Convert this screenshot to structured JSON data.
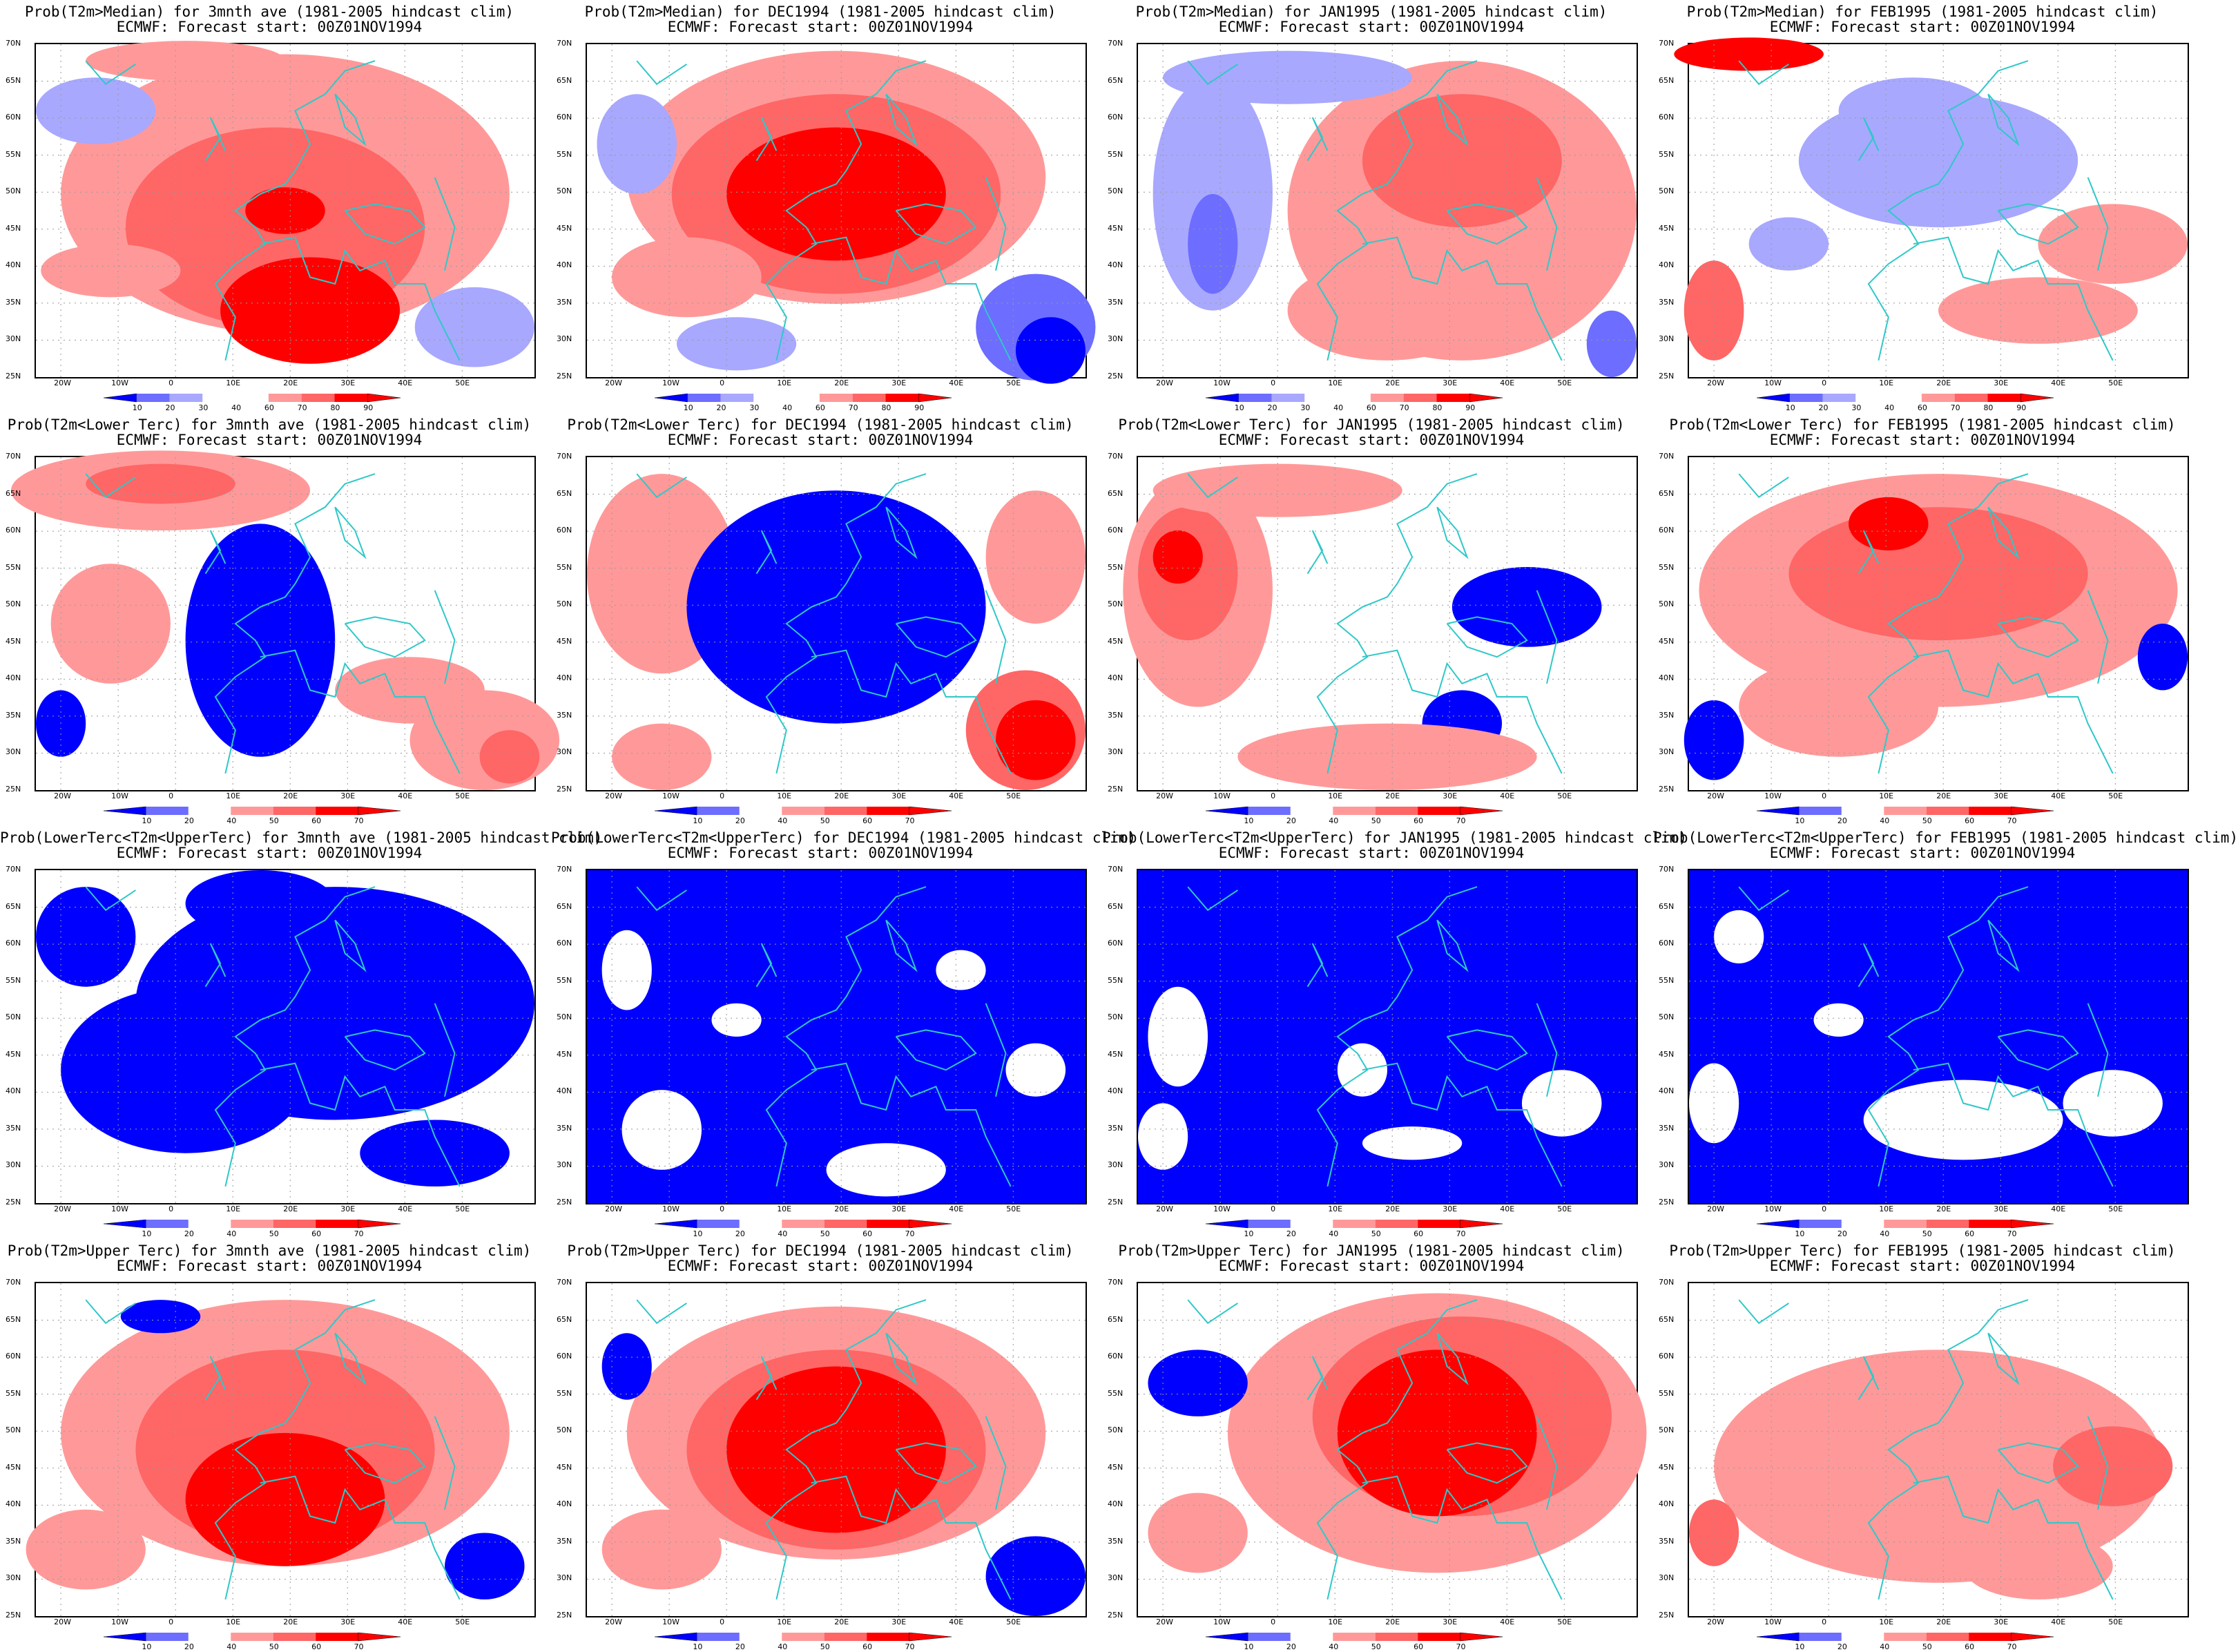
{
  "colors": {
    "blue_dark": "#0000ff",
    "blue_mid": "#6d6dff",
    "blue_light": "#a8a8ff",
    "white": "#ffffff",
    "red_light": "#ff9999",
    "red_mid": "#ff6666",
    "red_dark": "#ff0000",
    "coast": "#2fc8c8"
  },
  "axes": {
    "lat_ticks": [
      "70N",
      "65N",
      "60N",
      "55N",
      "50N",
      "45N",
      "40N",
      "35N",
      "30N",
      "25N"
    ],
    "lon_ticks": [
      "20W",
      "10W",
      "0",
      "10E",
      "20E",
      "30E",
      "40E",
      "50E"
    ]
  },
  "colorbars": {
    "median": [
      "10",
      "20",
      "30",
      "40",
      "60",
      "70",
      "80",
      "90"
    ],
    "tercile": [
      "10",
      "20",
      "40",
      "50",
      "60",
      "70"
    ]
  },
  "panels": [
    {
      "line1": "Prob(T2m>Median) for 3mnth ave (1981-2005 hindcast clim)",
      "line2": "ECMWF: Forecast start: 00Z01NOV1994",
      "colorbar": "median",
      "pattern": "med_avg"
    },
    {
      "line1": "Prob(T2m>Median) for DEC1994 (1981-2005 hindcast clim)",
      "line2": "ECMWF: Forecast start: 00Z01NOV1994",
      "colorbar": "median",
      "pattern": "med_dec"
    },
    {
      "line1": "Prob(T2m>Median) for JAN1995 (1981-2005 hindcast clim)",
      "line2": "ECMWF: Forecast start: 00Z01NOV1994",
      "colorbar": "median",
      "pattern": "med_jan"
    },
    {
      "line1": "Prob(T2m>Median) for FEB1995 (1981-2005 hindcast clim)",
      "line2": "ECMWF: Forecast start: 00Z01NOV1994",
      "colorbar": "median",
      "pattern": "med_feb"
    },
    {
      "line1": "Prob(T2m<Lower Terc) for 3mnth ave (1981-2005 hindcast clim)",
      "line2": "ECMWF: Forecast start: 00Z01NOV1994",
      "colorbar": "tercile",
      "pattern": "low_avg"
    },
    {
      "line1": "Prob(T2m<Lower Terc) for DEC1994 (1981-2005 hindcast clim)",
      "line2": "ECMWF: Forecast start: 00Z01NOV1994",
      "colorbar": "tercile",
      "pattern": "low_dec"
    },
    {
      "line1": "Prob(T2m<Lower Terc) for JAN1995 (1981-2005 hindcast clim)",
      "line2": "ECMWF: Forecast start: 00Z01NOV1994",
      "colorbar": "tercile",
      "pattern": "low_jan"
    },
    {
      "line1": "Prob(T2m<Lower Terc) for FEB1995 (1981-2005 hindcast clim)",
      "line2": "ECMWF: Forecast start: 00Z01NOV1994",
      "colorbar": "tercile",
      "pattern": "low_feb"
    },
    {
      "line1": "Prob(LowerTerc<T2m<UpperTerc) for 3mnth ave (1981-2005 hindcast clim)",
      "line2": "ECMWF: Forecast start: 00Z01NOV1994",
      "colorbar": "tercile",
      "pattern": "mid_avg"
    },
    {
      "line1": "Prob(LowerTerc<T2m<UpperTerc) for DEC1994 (1981-2005 hindcast clim)",
      "line2": "ECMWF: Forecast start: 00Z01NOV1994",
      "colorbar": "tercile",
      "pattern": "mid_dec"
    },
    {
      "line1": "Prob(LowerTerc<T2m<UpperTerc) for JAN1995 (1981-2005 hindcast clim)",
      "line2": "ECMWF: Forecast start: 00Z01NOV1994",
      "colorbar": "tercile",
      "pattern": "mid_jan"
    },
    {
      "line1": "Prob(LowerTerc<T2m<UpperTerc) for FEB1995 (1981-2005 hindcast clim)",
      "line2": "ECMWF: Forecast start: 00Z01NOV1994",
      "colorbar": "tercile",
      "pattern": "mid_feb"
    },
    {
      "line1": "Prob(T2m>Upper Terc) for 3mnth ave (1981-2005 hindcast clim)",
      "line2": "ECMWF: Forecast start: 00Z01NOV1994",
      "colorbar": "tercile",
      "pattern": "up_avg"
    },
    {
      "line1": "Prob(T2m>Upper Terc) for DEC1994 (1981-2005 hindcast clim)",
      "line2": "ECMWF: Forecast start: 00Z01NOV1994",
      "colorbar": "tercile",
      "pattern": "up_dec"
    },
    {
      "line1": "Prob(T2m>Upper Terc) for JAN1995 (1981-2005 hindcast clim)",
      "line2": "ECMWF: Forecast start: 00Z01NOV1994",
      "colorbar": "tercile",
      "pattern": "up_jan"
    },
    {
      "line1": "Prob(T2m>Upper Terc) for FEB1995 (1981-2005 hindcast clim)",
      "line2": "ECMWF: Forecast start: 00Z01NOV1994",
      "colorbar": "tercile",
      "pattern": "up_feb"
    }
  ]
}
